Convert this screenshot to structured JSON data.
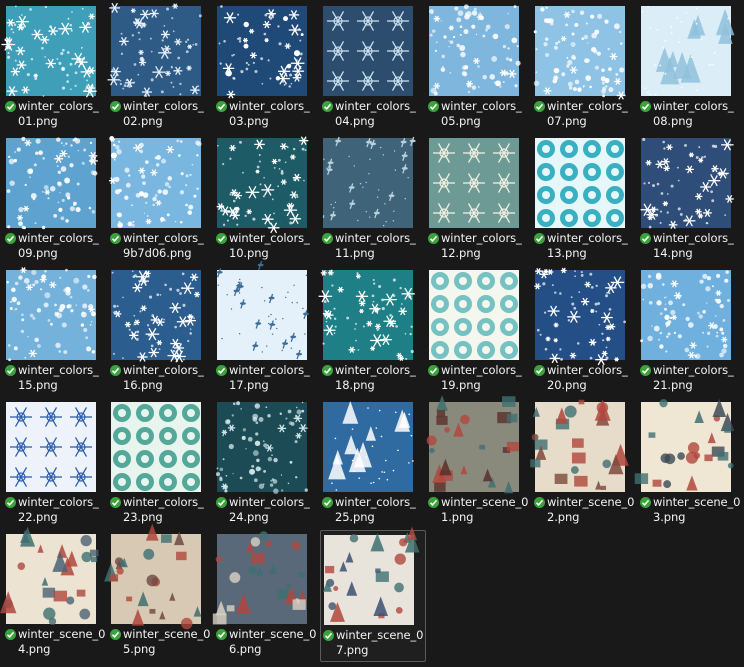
{
  "view": "large-icons",
  "status_icon": "sync-checkmark-icon",
  "status_color": "#3aa33a",
  "files": [
    {
      "line1": "winter_colors_",
      "line2": "01.png",
      "bg": "#3f9fb8",
      "fg": "#ffffff",
      "pattern": "flakes",
      "selected": false
    },
    {
      "line1": "winter_colors_",
      "line2": "02.png",
      "bg": "#2e5a86",
      "fg": "#e8f1fb",
      "pattern": "flakes",
      "selected": false
    },
    {
      "line1": "winter_colors_",
      "line2": "03.png",
      "bg": "#1f4a78",
      "fg": "#ffffff",
      "pattern": "stars",
      "selected": false
    },
    {
      "line1": "winter_colors_",
      "line2": "04.png",
      "bg": "#2d4d6e",
      "fg": "#c9dff0",
      "pattern": "ornament",
      "selected": false
    },
    {
      "line1": "winter_colors_",
      "line2": "05.png",
      "bg": "#7fb6dd",
      "fg": "#ffffff",
      "pattern": "dots",
      "selected": false
    },
    {
      "line1": "winter_colors_",
      "line2": "07.png",
      "bg": "#8ec3e6",
      "fg": "#ffffff",
      "pattern": "dots",
      "selected": false
    },
    {
      "line1": "winter_colors_",
      "line2": "08.png",
      "bg": "#dbeef8",
      "fg": "#8fc1dc",
      "pattern": "trees",
      "selected": false
    },
    {
      "line1": "winter_colors_",
      "line2": "09.png",
      "bg": "#5ea2cf",
      "fg": "#ffffff",
      "pattern": "dots",
      "selected": false
    },
    {
      "line1": "winter_colors_",
      "line2": "9b7d06.png",
      "bg": "#79b7e0",
      "fg": "#ffffff",
      "pattern": "dots",
      "selected": false
    },
    {
      "line1": "winter_colors_",
      "line2": "10.png",
      "bg": "#1d5b66",
      "fg": "#ffffff",
      "pattern": "flakes",
      "selected": false
    },
    {
      "line1": "winter_colors_",
      "line2": "11.png",
      "bg": "#3f6479",
      "fg": "#b9d0dc",
      "pattern": "sprigs",
      "selected": false
    },
    {
      "line1": "winter_colors_",
      "line2": "12.png",
      "bg": "#6e9a96",
      "fg": "#f1efe2",
      "pattern": "ornament",
      "selected": false
    },
    {
      "line1": "winter_colors_",
      "line2": "13.png",
      "bg": "#e6f7f9",
      "fg": "#1aa3b8",
      "pattern": "tiles",
      "selected": false
    },
    {
      "line1": "winter_colors_",
      "line2": "14.png",
      "bg": "#2e4d78",
      "fg": "#ffffff",
      "pattern": "flakes",
      "selected": false
    },
    {
      "line1": "winter_colors_",
      "line2": "15.png",
      "bg": "#74b2dc",
      "fg": "#ffffff",
      "pattern": "dots",
      "selected": false
    },
    {
      "line1": "winter_colors_",
      "line2": "16.png",
      "bg": "#2b5d8f",
      "fg": "#ffffff",
      "pattern": "flakes",
      "selected": false
    },
    {
      "line1": "winter_colors_",
      "line2": "17.png",
      "bg": "#e4f0fa",
      "fg": "#3f6d99",
      "pattern": "sprigs",
      "selected": false
    },
    {
      "line1": "winter_colors_",
      "line2": "18.png",
      "bg": "#1e7f86",
      "fg": "#ffffff",
      "pattern": "flakes",
      "selected": false
    },
    {
      "line1": "winter_colors_",
      "line2": "19.png",
      "bg": "#f4f7ee",
      "fg": "#5fb7b8",
      "pattern": "tiles",
      "selected": false
    },
    {
      "line1": "winter_colors_",
      "line2": "20.png",
      "bg": "#244f86",
      "fg": "#ffffff",
      "pattern": "flakes",
      "selected": false
    },
    {
      "line1": "winter_colors_",
      "line2": "21.png",
      "bg": "#6fb0de",
      "fg": "#ffffff",
      "pattern": "dots",
      "selected": false
    },
    {
      "line1": "winter_colors_",
      "line2": "22.png",
      "bg": "#eef3fb",
      "fg": "#2c5fae",
      "pattern": "ornament",
      "selected": false
    },
    {
      "line1": "winter_colors_",
      "line2": "23.png",
      "bg": "#e8f5ef",
      "fg": "#3a9a8a",
      "pattern": "tiles",
      "selected": false
    },
    {
      "line1": "winter_colors_",
      "line2": "24.png",
      "bg": "#1c4b56",
      "fg": "#cfe7ea",
      "pattern": "dots",
      "selected": false
    },
    {
      "line1": "winter_colors_",
      "line2": "25.png",
      "bg": "#2f6aa0",
      "fg": "#ffffff",
      "pattern": "trees",
      "selected": false
    },
    {
      "line1": "winter_scene_0",
      "line2": "1.png",
      "bg": "#8a8a7c",
      "fg": "#5a2f2a",
      "pattern": "scene",
      "selected": false
    },
    {
      "line1": "winter_scene_0",
      "line2": "2.png",
      "bg": "#e6dcc9",
      "fg": "#7c4a3c",
      "pattern": "scene",
      "selected": false
    },
    {
      "line1": "winter_scene_0",
      "line2": "3.png",
      "bg": "#efe6d3",
      "fg": "#3c4a57",
      "pattern": "scene",
      "selected": false
    },
    {
      "line1": "winter_scene_0",
      "line2": "4.png",
      "bg": "#ece3d2",
      "fg": "#4b6174",
      "pattern": "scene",
      "selected": false
    },
    {
      "line1": "winter_scene_0",
      "line2": "5.png",
      "bg": "#d8c9b4",
      "fg": "#6d4a41",
      "pattern": "scene",
      "selected": false
    },
    {
      "line1": "winter_scene_0",
      "line2": "6.png",
      "bg": "#59697a",
      "fg": "#d9d2c4",
      "pattern": "scene",
      "selected": false
    },
    {
      "line1": "winter_scene_0",
      "line2": "7.png",
      "bg": "#e8e4dc",
      "fg": "#3d5070",
      "pattern": "scene",
      "selected": true
    }
  ]
}
